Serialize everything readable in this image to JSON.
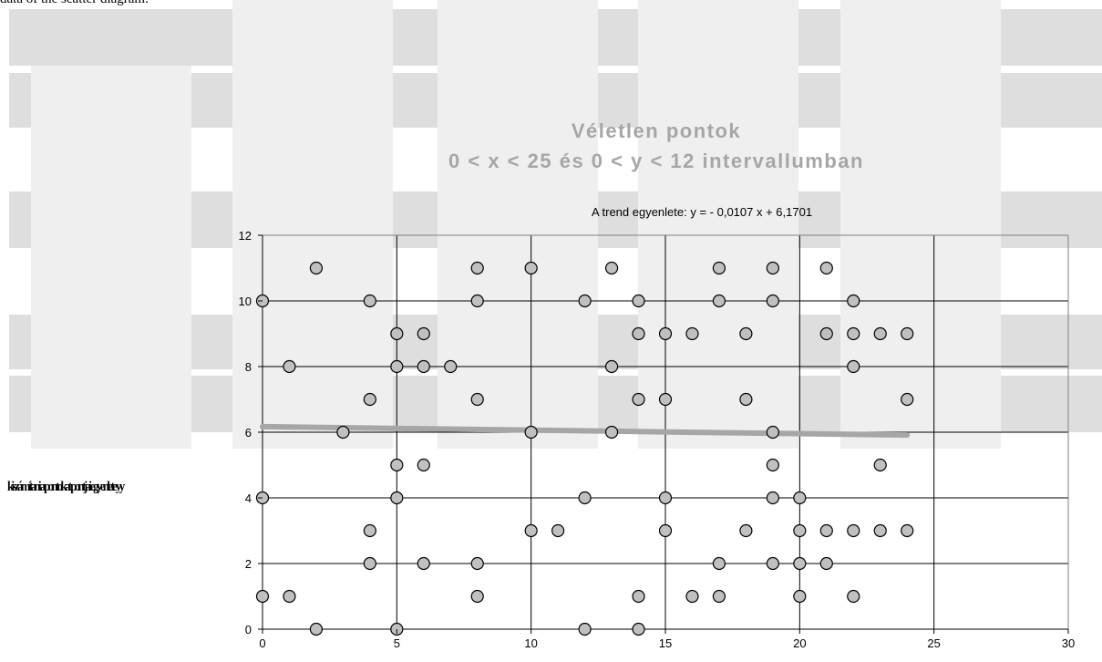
{
  "top_text": "data of the scatter diagram.",
  "left_garbled_text": "kiszámítani a pontokat pontjai egyenlete yy",
  "colors": {
    "point_fill": "#c0c0c0",
    "point_stroke": "#000000",
    "trend": "#a6a6a6",
    "grid": "#000000",
    "title": "#a6a6a6"
  },
  "chart_data": {
    "type": "scatter",
    "title": "Véletlen pontok",
    "subtitle": "0 < x < 25  és 0 < y < 12  intervallumban",
    "annotation": "A trend egyenlete:   y = - 0,0107 x + 6,1701",
    "xlabel": "",
    "ylabel": "",
    "xlim": [
      0,
      30
    ],
    "ylim": [
      0,
      12
    ],
    "x_ticks": [
      0,
      5,
      10,
      15,
      20,
      25,
      30
    ],
    "y_ticks": [
      0,
      2,
      4,
      6,
      8,
      10,
      12
    ],
    "grid": true,
    "trendline": {
      "slope": -0.0107,
      "intercept": 6.1701,
      "x_range": [
        0,
        24
      ]
    },
    "points": [
      [
        0,
        10
      ],
      [
        0,
        4
      ],
      [
        0,
        1
      ],
      [
        1,
        8
      ],
      [
        1,
        1
      ],
      [
        2,
        11
      ],
      [
        2,
        0
      ],
      [
        3,
        6
      ],
      [
        4,
        10
      ],
      [
        4,
        7
      ],
      [
        4,
        3
      ],
      [
        4,
        2
      ],
      [
        5,
        9
      ],
      [
        5,
        8
      ],
      [
        5,
        5
      ],
      [
        5,
        4
      ],
      [
        5,
        0
      ],
      [
        6,
        9
      ],
      [
        6,
        8
      ],
      [
        6,
        5
      ],
      [
        6,
        2
      ],
      [
        7,
        8
      ],
      [
        8,
        11
      ],
      [
        8,
        10
      ],
      [
        8,
        7
      ],
      [
        8,
        2
      ],
      [
        8,
        1
      ],
      [
        10,
        11
      ],
      [
        10,
        6
      ],
      [
        10,
        3
      ],
      [
        11,
        3
      ],
      [
        12,
        10
      ],
      [
        12,
        4
      ],
      [
        12,
        0
      ],
      [
        13,
        11
      ],
      [
        13,
        8
      ],
      [
        13,
        6
      ],
      [
        14,
        10
      ],
      [
        14,
        9
      ],
      [
        14,
        7
      ],
      [
        14,
        1
      ],
      [
        14,
        0
      ],
      [
        15,
        9
      ],
      [
        15,
        7
      ],
      [
        15,
        4
      ],
      [
        15,
        3
      ],
      [
        16,
        9
      ],
      [
        16,
        1
      ],
      [
        17,
        11
      ],
      [
        17,
        10
      ],
      [
        17,
        2
      ],
      [
        17,
        1
      ],
      [
        18,
        9
      ],
      [
        18,
        7
      ],
      [
        18,
        3
      ],
      [
        19,
        11
      ],
      [
        19,
        10
      ],
      [
        19,
        6
      ],
      [
        19,
        5
      ],
      [
        19,
        4
      ],
      [
        19,
        2
      ],
      [
        20,
        4
      ],
      [
        20,
        3
      ],
      [
        20,
        2
      ],
      [
        20,
        1
      ],
      [
        21,
        11
      ],
      [
        21,
        9
      ],
      [
        21,
        3
      ],
      [
        21,
        2
      ],
      [
        22,
        10
      ],
      [
        22,
        9
      ],
      [
        22,
        8
      ],
      [
        22,
        3
      ],
      [
        22,
        1
      ],
      [
        23,
        9
      ],
      [
        23,
        5
      ],
      [
        23,
        3
      ],
      [
        24,
        9
      ],
      [
        24,
        7
      ],
      [
        24,
        3
      ]
    ]
  }
}
